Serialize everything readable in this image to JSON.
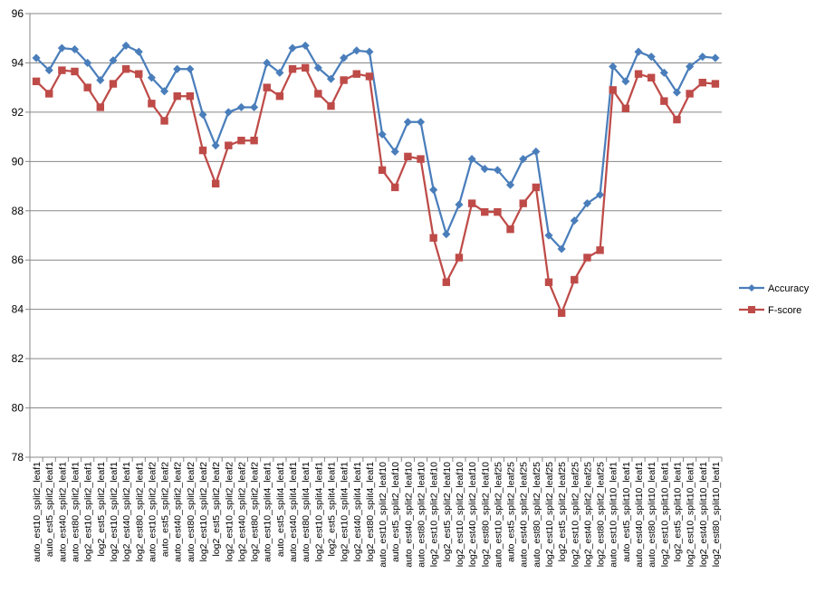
{
  "chart_data": {
    "type": "line",
    "title": "",
    "xlabel": "",
    "ylabel": "",
    "ylim": [
      78,
      96
    ],
    "yticks": [
      78,
      80,
      82,
      84,
      86,
      88,
      90,
      92,
      94,
      96
    ],
    "grid": "horizontal",
    "legend_position": "right",
    "categories": [
      "auto_est10_split2_leaf1",
      "auto_est5_split2_leaf1",
      "auto_est40_split2_leaf1",
      "auto_est80_split2_leaf1",
      "log2_est10_split2_leaf1",
      "log2_est5_split2_leaf1",
      "log2_est10_split2_leaf1",
      "log2_est40_split2_leaf1",
      "log2_est80_split2_leaf1",
      "auto_est10_split2_leaf2",
      "auto_est5_split2_leaf2",
      "auto_est40_split2_leaf2",
      "auto_est80_split2_leaf2",
      "log2_est10_split2_leaf2",
      "log2_est5_split2_leaf2",
      "log2_est10_split2_leaf2",
      "log2_est40_split2_leaf2",
      "log2_est80_split2_leaf2",
      "auto_est10_split4_leaf1",
      "auto_est5_split4_leaf1",
      "auto_est40_split4_leaf1",
      "auto_est80_split4_leaf1",
      "log2_est10_split4_leaf1",
      "log2_est5_split4_leaf1",
      "log2_est10_split4_leaf1",
      "log2_est40_split4_leaf1",
      "log2_est80_split4_leaf1",
      "auto_est10_split2_leaf10",
      "auto_est5_split2_leaf10",
      "auto_est40_split2_leaf10",
      "auto_est80_split2_leaf10",
      "log2_est10_split2_leaf10",
      "log2_est5_split2_leaf10",
      "log2_est10_split2_leaf10",
      "log2_est40_split2_leaf10",
      "log2_est80_split2_leaf10",
      "auto_est10_split2_leaf25",
      "auto_est5_split2_leaf25",
      "auto_est40_split2_leaf25",
      "auto_est80_split2_leaf25",
      "log2_est10_split2_leaf25",
      "log2_est5_split2_leaf25",
      "log2_est10_split2_leaf25",
      "log2_est40_split2_leaf25",
      "log2_est80_split2_leaf25",
      "auto_est10_split10_leaf1",
      "auto_est5_split10_leaf1",
      "auto_est40_split10_leaf1",
      "auto_est80_split10_leaf1",
      "log2_est10_split10_leaf1",
      "log2_est5_split10_leaf1",
      "log2_est10_split10_leaf1",
      "log2_est40_split10_leaf1",
      "log2_est80_split10_leaf1"
    ],
    "series": [
      {
        "name": "Accuracy",
        "color": "#4a7ebb",
        "marker": "diamond",
        "values": [
          94.2,
          93.7,
          94.6,
          94.55,
          94.0,
          93.3,
          94.1,
          94.7,
          94.45,
          93.4,
          92.85,
          93.75,
          93.75,
          91.9,
          90.65,
          92.0,
          92.2,
          92.2,
          94.0,
          93.6,
          94.6,
          94.7,
          93.8,
          93.35,
          94.2,
          94.5,
          94.45,
          91.1,
          90.4,
          91.6,
          91.6,
          88.85,
          87.05,
          88.25,
          90.1,
          89.7,
          89.65,
          89.05,
          90.1,
          90.4,
          87.0,
          86.45,
          87.6,
          88.3,
          88.65,
          93.85,
          93.25,
          94.45,
          94.25,
          93.6,
          92.8,
          93.85,
          94.25,
          94.2
        ]
      },
      {
        "name": "F-score",
        "color": "#be4b48",
        "marker": "square",
        "values": [
          93.25,
          92.75,
          93.7,
          93.65,
          93.0,
          92.2,
          93.15,
          93.75,
          93.55,
          92.35,
          91.65,
          92.65,
          92.65,
          90.45,
          89.1,
          90.65,
          90.85,
          90.85,
          93.0,
          92.65,
          93.75,
          93.8,
          92.75,
          92.25,
          93.3,
          93.55,
          93.45,
          89.65,
          88.95,
          90.2,
          90.1,
          86.9,
          85.1,
          86.1,
          88.3,
          87.95,
          87.95,
          87.25,
          88.3,
          88.95,
          85.1,
          83.85,
          85.2,
          86.1,
          86.4,
          92.9,
          92.15,
          93.55,
          93.4,
          92.45,
          91.7,
          92.75,
          93.2,
          93.15
        ]
      }
    ]
  }
}
